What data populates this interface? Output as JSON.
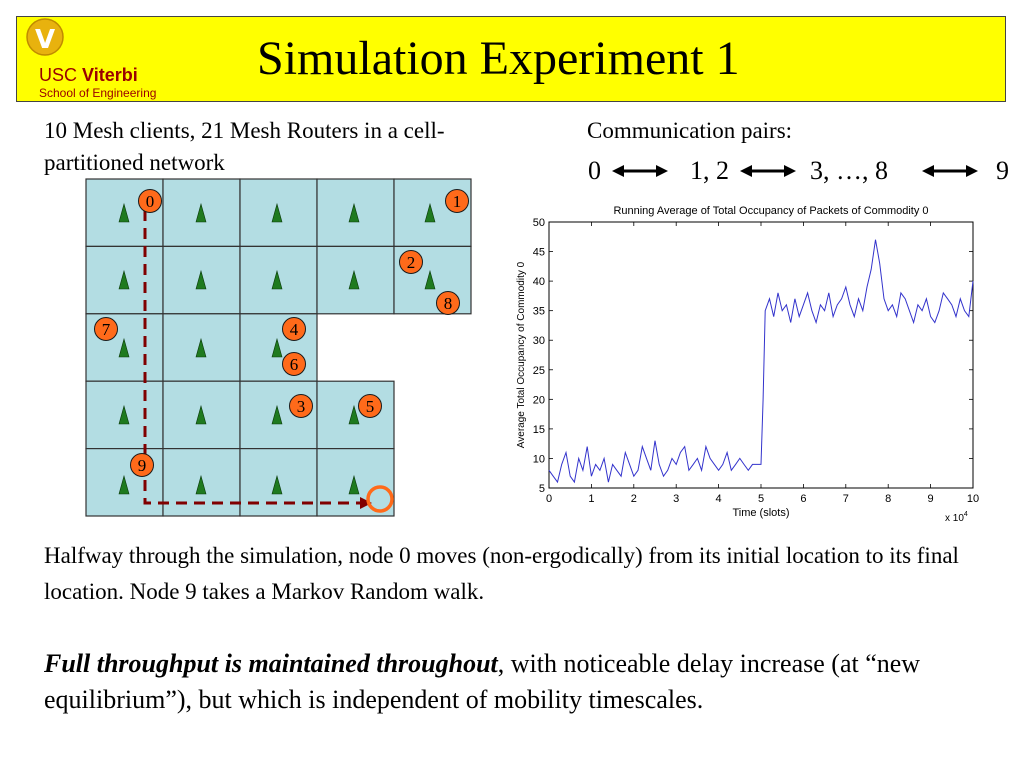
{
  "title": "Simulation Experiment 1",
  "logo": {
    "line1_a": "USC",
    "line1_b": "Viterbi",
    "line2": "School of Engineering",
    "mark": "V"
  },
  "description": "10 Mesh clients, 21 Mesh Routers in a cell-partitioned network",
  "pairs": {
    "label": "Communication pairs:",
    "items": [
      "0",
      "1, 2",
      "3, …, 8",
      "9"
    ]
  },
  "network": {
    "node_labels": [
      "0",
      "1",
      "2",
      "8",
      "7",
      "4",
      "6",
      "3",
      "5",
      "9"
    ],
    "cell_fill": "#b3dde3",
    "router_color": "#1f7a1f",
    "node_fill": "#ff6a1a",
    "path_color": "#800000"
  },
  "chart_data": {
    "type": "line",
    "title": "Running Average of Total Occupancy of Packets of Commodity 0",
    "xlabel": "Time (slots)",
    "ylabel": "Average Total Occupancy of Commodity 0",
    "x_multiplier": "x 10^4",
    "xlim": [
      0,
      10
    ],
    "ylim": [
      5,
      50
    ],
    "xticks": [
      "0",
      "1",
      "2",
      "3",
      "4",
      "5",
      "6",
      "7",
      "8",
      "9",
      "10"
    ],
    "yticks": [
      "5",
      "10",
      "15",
      "20",
      "25",
      "30",
      "35",
      "40",
      "45",
      "50"
    ],
    "line_color": "#3333cc",
    "series": [
      {
        "x": [
          0,
          0.1,
          0.2,
          0.3,
          0.4,
          0.5,
          0.6,
          0.7,
          0.8,
          0.9,
          1.0,
          1.1,
          1.2,
          1.3,
          1.4,
          1.5,
          1.6,
          1.7,
          1.8,
          1.9,
          2.0,
          2.1,
          2.2,
          2.3,
          2.4,
          2.5,
          2.6,
          2.7,
          2.8,
          2.9,
          3.0,
          3.1,
          3.2,
          3.3,
          3.4,
          3.5,
          3.6,
          3.7,
          3.8,
          3.9,
          4.0,
          4.1,
          4.2,
          4.3,
          4.4,
          4.5,
          4.6,
          4.7,
          4.8,
          4.9,
          5.0,
          5.05,
          5.1,
          5.2,
          5.3,
          5.4,
          5.5,
          5.6,
          5.7,
          5.8,
          5.9,
          6.0,
          6.1,
          6.2,
          6.3,
          6.4,
          6.5,
          6.6,
          6.7,
          6.8,
          6.9,
          7.0,
          7.1,
          7.2,
          7.3,
          7.4,
          7.5,
          7.6,
          7.7,
          7.8,
          7.9,
          8.0,
          8.1,
          8.2,
          8.3,
          8.4,
          8.5,
          8.6,
          8.7,
          8.8,
          8.9,
          9.0,
          9.1,
          9.2,
          9.3,
          9.4,
          9.5,
          9.6,
          9.7,
          9.8,
          9.9,
          10.0
        ],
        "y": [
          8,
          7,
          6,
          9,
          11,
          7,
          6,
          10,
          8,
          12,
          7,
          9,
          8,
          10,
          6,
          9,
          8,
          7,
          11,
          9,
          7,
          8,
          12,
          10,
          8,
          13,
          9,
          7,
          8,
          10,
          9,
          11,
          12,
          8,
          9,
          10,
          8,
          12,
          10,
          9,
          8,
          9,
          11,
          8,
          9,
          10,
          9,
          8,
          9,
          9,
          9,
          20,
          35,
          37,
          34,
          38,
          35,
          36,
          33,
          37,
          34,
          36,
          38,
          35,
          33,
          36,
          35,
          38,
          34,
          36,
          37,
          39,
          36,
          34,
          37,
          35,
          39,
          42,
          47,
          43,
          37,
          35,
          36,
          34,
          38,
          37,
          35,
          33,
          36,
          35,
          37,
          34,
          33,
          35,
          38,
          37,
          36,
          34,
          37,
          35,
          34,
          40
        ]
      }
    ]
  },
  "paragraph1": "Halfway through the simulation, node 0 moves (non-ergodically) from its initial location to its final location. Node 9 takes a Markov Random walk.",
  "paragraph2": {
    "emphasis": "Full throughput is maintained throughout",
    "rest": ", with noticeable delay increase (at “new equilibrium”), but which is independent of mobility timescales."
  }
}
